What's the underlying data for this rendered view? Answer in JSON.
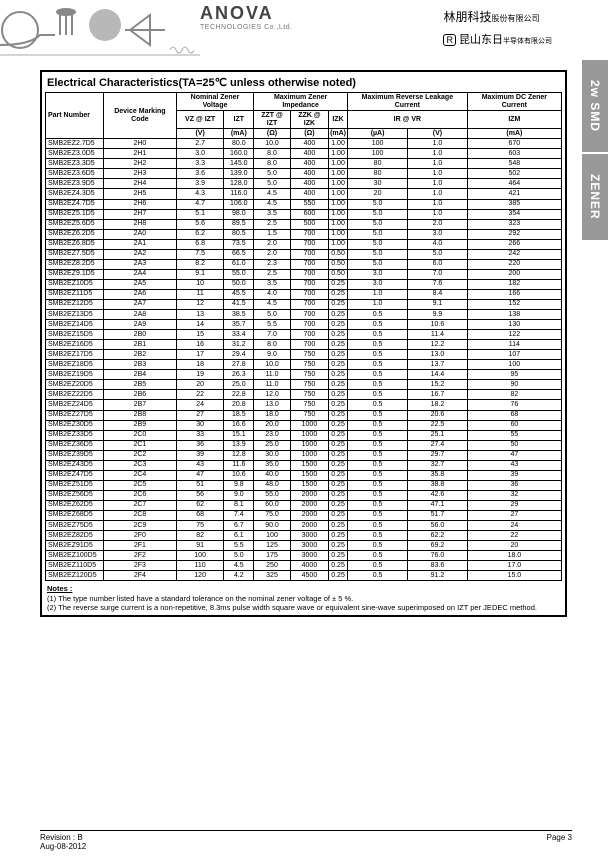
{
  "header": {
    "logo_title": "ANOVA",
    "logo_sub": "TECHNOLOGIES Co.,Ltd.",
    "cn_line1_main": "林朋科技",
    "cn_line1_small": "股份有限公司",
    "cn_line2_prefix": "R",
    "cn_line2_main": "昆山东日",
    "cn_line2_small": "半导体有限公司"
  },
  "tabs": {
    "t1": "2w SMD",
    "t2": "ZENER"
  },
  "section_title": "Electrical Characteristics(TA=25℃ unless otherwise noted)",
  "columns": {
    "part": "Part Number",
    "marking": "Device Marking Code",
    "nominal": "Nominal Zener Voltage",
    "maximp": "Maximum Zener Impedance",
    "maxrev": "Maximum Reverse Leakage Current",
    "maxdc": "Maximum DC Zener Current",
    "vz": "VZ @ IZT",
    "izt": "IZT",
    "zzt": "ZZT @ IZT",
    "zzk": "ZZK @ IZK",
    "izk": "IZK",
    "ir": "IR @ VR",
    "vr": "",
    "izm": "IZM",
    "u_v": "(V)",
    "u_ma": "(mA)",
    "u_ohm": "(Ω)",
    "u_ua": "(µA)"
  },
  "rows": [
    [
      "SMB2EZ2.7D5",
      "2H0",
      "2.7",
      "80.0",
      "10.0",
      "400",
      "1.00",
      "100",
      "1.0",
      "670"
    ],
    [
      "SMB2EZ3.0D5",
      "2H1",
      "3.0",
      "160.0",
      "8.0",
      "400",
      "1.00",
      "100",
      "1.0",
      "603"
    ],
    [
      "SMB2EZ3.3D5",
      "2H2",
      "3.3",
      "145.0",
      "8.0",
      "400",
      "1.00",
      "80",
      "1.0",
      "548"
    ],
    [
      "SMB2EZ3.6D5",
      "2H3",
      "3.6",
      "139.0",
      "5.0",
      "400",
      "1.00",
      "80",
      "1.0",
      "502"
    ],
    [
      "SMB2EZ3.9D5",
      "2H4",
      "3.9",
      "128.0",
      "5.0",
      "400",
      "1.00",
      "30",
      "1.0",
      "464"
    ],
    [
      "SMB2EZ4.3D5",
      "2H5",
      "4.3",
      "116.0",
      "4.5",
      "400",
      "1.00",
      "20",
      "1.0",
      "421"
    ],
    [
      "SMB2EZ4.7D5",
      "2H6",
      "4.7",
      "106.0",
      "4.5",
      "550",
      "1.00",
      "5.0",
      "1.0",
      "385"
    ],
    [
      "SMB2EZ5.1D5",
      "2H7",
      "5.1",
      "98.0",
      "3.5",
      "600",
      "1.00",
      "5.0",
      "1.0",
      "354"
    ],
    [
      "SMB2EZ5.6D5",
      "2H8",
      "5.6",
      "89.5",
      "2.5",
      "500",
      "1.00",
      "5.0",
      "2.0",
      "323"
    ],
    [
      "SMB2EZ6.2D5",
      "2A0",
      "6.2",
      "80.5",
      "1.5",
      "700",
      "1.00",
      "5.0",
      "3.0",
      "292"
    ],
    [
      "SMB2EZ6.8D5",
      "2A1",
      "6.8",
      "73.5",
      "2.0",
      "700",
      "1.00",
      "5.0",
      "4.0",
      "266"
    ],
    [
      "SMB2EZ7.5D5",
      "2A2",
      "7.5",
      "66.5",
      "2.0",
      "700",
      "0.50",
      "5.0",
      "5.0",
      "242"
    ],
    [
      "SMB2EZ8.2D5",
      "2A3",
      "8.2",
      "61.0",
      "2.3",
      "700",
      "0.50",
      "5.0",
      "6.0",
      "220"
    ],
    [
      "SMB2EZ9.1D5",
      "2A4",
      "9.1",
      "55.0",
      "2.5",
      "700",
      "0.50",
      "3.0",
      "7.0",
      "200"
    ],
    [
      "SMB2EZ10D5",
      "2A5",
      "10",
      "50.0",
      "3.5",
      "700",
      "0.25",
      "3.0",
      "7.6",
      "182"
    ],
    [
      "SMB2EZ11D5",
      "2A6",
      "11",
      "45.5",
      "4.0",
      "700",
      "0.25",
      "1.0",
      "8.4",
      "166"
    ],
    [
      "SMB2EZ12D5",
      "2A7",
      "12",
      "41.5",
      "4.5",
      "700",
      "0.25",
      "1.0",
      "9.1",
      "152"
    ],
    [
      "SMB2EZ13D5",
      "2A8",
      "13",
      "38.5",
      "5.0",
      "700",
      "0.25",
      "0.5",
      "9.9",
      "138"
    ],
    [
      "SMB2EZ14D5",
      "2A9",
      "14",
      "35.7",
      "5.5",
      "700",
      "0.25",
      "0.5",
      "10.6",
      "130"
    ],
    [
      "SMB2EZ15D5",
      "2B0",
      "15",
      "33.4",
      "7.0",
      "700",
      "0.25",
      "0.5",
      "11.4",
      "122"
    ],
    [
      "SMB2EZ16D5",
      "2B1",
      "16",
      "31.2",
      "8.0",
      "700",
      "0.25",
      "0.5",
      "12.2",
      "114"
    ],
    [
      "SMB2EZ17D5",
      "2B2",
      "17",
      "29.4",
      "9.0",
      "750",
      "0.25",
      "0.5",
      "13.0",
      "107"
    ],
    [
      "SMB2EZ18D5",
      "2B3",
      "18",
      "27.8",
      "10.0",
      "750",
      "0.25",
      "0.5",
      "13.7",
      "100"
    ],
    [
      "SMB2EZ19D5",
      "2B4",
      "19",
      "26.3",
      "11.0",
      "750",
      "0.25",
      "0.5",
      "14.4",
      "95"
    ],
    [
      "SMB2EZ20D5",
      "2B5",
      "20",
      "25.0",
      "11.0",
      "750",
      "0.25",
      "0.5",
      "15.2",
      "90"
    ],
    [
      "SMB2EZ22D5",
      "2B6",
      "22",
      "22.8",
      "12.0",
      "750",
      "0.25",
      "0.5",
      "16.7",
      "82"
    ],
    [
      "SMB2EZ24D5",
      "2B7",
      "24",
      "20.8",
      "13.0",
      "750",
      "0.25",
      "0.5",
      "18.2",
      "76"
    ],
    [
      "SMB2EZ27D5",
      "2B8",
      "27",
      "18.5",
      "18.0",
      "750",
      "0.25",
      "0.5",
      "20.6",
      "68"
    ],
    [
      "SMB2EZ30D5",
      "2B9",
      "30",
      "16.6",
      "20.0",
      "1000",
      "0.25",
      "0.5",
      "22.5",
      "60"
    ],
    [
      "SMB2EZ33D5",
      "2C0",
      "33",
      "15.1",
      "23.0",
      "1000",
      "0.25",
      "0.5",
      "25.1",
      "55"
    ],
    [
      "SMB2EZ36D5",
      "2C1",
      "36",
      "13.9",
      "25.0",
      "1000",
      "0.25",
      "0.5",
      "27.4",
      "50"
    ],
    [
      "SMB2EZ39D5",
      "2C2",
      "39",
      "12.8",
      "30.0",
      "1000",
      "0.25",
      "0.5",
      "29.7",
      "47"
    ],
    [
      "SMB2EZ43D5",
      "2C3",
      "43",
      "11.6",
      "35.0",
      "1500",
      "0.25",
      "0.5",
      "32.7",
      "43"
    ],
    [
      "SMB2EZ47D5",
      "2C4",
      "47",
      "10.6",
      "40.0",
      "1500",
      "0.25",
      "0.5",
      "35.8",
      "39"
    ],
    [
      "SMB2EZ51D5",
      "2C5",
      "51",
      "9.8",
      "48.0",
      "1500",
      "0.25",
      "0.5",
      "38.8",
      "36"
    ],
    [
      "SMB2EZ56D5",
      "2C6",
      "56",
      "9.0",
      "55.0",
      "2000",
      "0.25",
      "0.5",
      "42.6",
      "32"
    ],
    [
      "SMB2EZ62D5",
      "2C7",
      "62",
      "8.1",
      "60.0",
      "2000",
      "0.25",
      "0.5",
      "47.1",
      "29"
    ],
    [
      "SMB2EZ68D5",
      "2C8",
      "68",
      "7.4",
      "75.0",
      "2000",
      "0.25",
      "0.5",
      "51.7",
      "27"
    ],
    [
      "SMB2EZ75D5",
      "2C9",
      "75",
      "6.7",
      "90.0",
      "2000",
      "0.25",
      "0.5",
      "56.0",
      "24"
    ],
    [
      "SMB2EZ82D5",
      "2F0",
      "82",
      "6.1",
      "100",
      "3000",
      "0.25",
      "0.5",
      "62.2",
      "22"
    ],
    [
      "SMB2EZ91D5",
      "2F1",
      "91",
      "5.5",
      "125",
      "3000",
      "0.25",
      "0.5",
      "69.2",
      "20"
    ],
    [
      "SMB2EZ100D5",
      "2F2",
      "100",
      "5.0",
      "175",
      "3000",
      "0.25",
      "0.5",
      "76.0",
      "18.0"
    ],
    [
      "SMB2EZ110D5",
      "2F3",
      "110",
      "4.5",
      "250",
      "4000",
      "0.25",
      "0.5",
      "83.6",
      "17.0"
    ],
    [
      "SMB2EZ120D5",
      "2F4",
      "120",
      "4.2",
      "325",
      "4500",
      "0.25",
      "0.5",
      "91.2",
      "15.0"
    ]
  ],
  "notes": {
    "title": "Notes :",
    "n1": "(1) The type number listed have a standard tolerance on the nominal zener voltage of ± 5 %.",
    "n2": "(2) The reverse surge current is a non-repetitive, 8.3ms pulse width square wave or equivalent sine-wave superimposed on IZT per JEDEC method."
  },
  "footer": {
    "rev": "Revision : B",
    "date": "Aug-08-2012",
    "page": "Page 3"
  }
}
